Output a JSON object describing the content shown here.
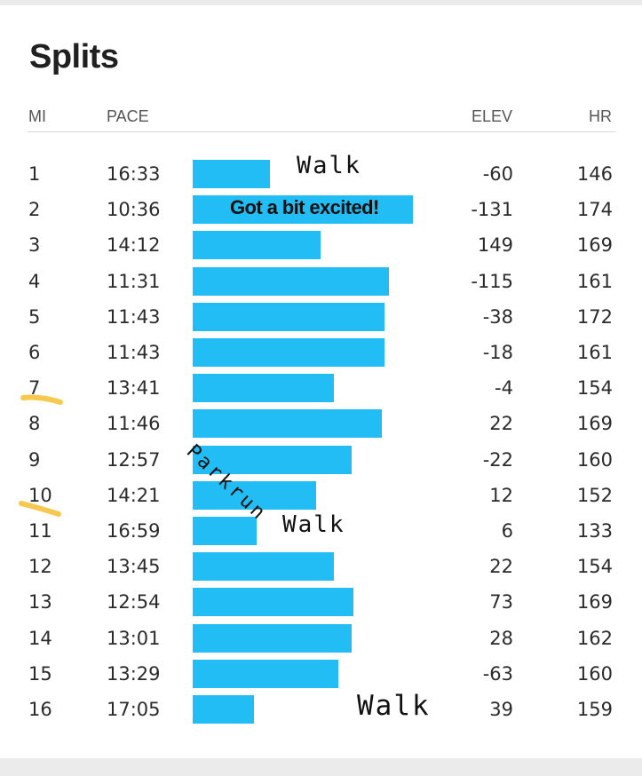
{
  "title": "Splits",
  "columns": {
    "mi": "MI",
    "pace": "PACE",
    "elev": "ELEV",
    "hr": "HR"
  },
  "colors": {
    "bar": "#21bdf4",
    "highlight": "#f5c33b"
  },
  "rows": [
    {
      "mi": "1",
      "pace": "16:33",
      "elev": "-60",
      "hr": "146",
      "bar_fraction": 0.35
    },
    {
      "mi": "2",
      "pace": "10:36",
      "elev": "-131",
      "hr": "174",
      "bar_fraction": 1.0
    },
    {
      "mi": "3",
      "pace": "14:12",
      "elev": "149",
      "hr": "169",
      "bar_fraction": 0.58
    },
    {
      "mi": "4",
      "pace": "11:31",
      "elev": "-115",
      "hr": "161",
      "bar_fraction": 0.89
    },
    {
      "mi": "5",
      "pace": "11:43",
      "elev": "-38",
      "hr": "172",
      "bar_fraction": 0.87
    },
    {
      "mi": "6",
      "pace": "11:43",
      "elev": "-18",
      "hr": "161",
      "bar_fraction": 0.87
    },
    {
      "mi": "7",
      "pace": "13:41",
      "elev": "-4",
      "hr": "154",
      "bar_fraction": 0.64
    },
    {
      "mi": "8",
      "pace": "11:46",
      "elev": "22",
      "hr": "169",
      "bar_fraction": 0.86
    },
    {
      "mi": "9",
      "pace": "12:57",
      "elev": "-22",
      "hr": "160",
      "bar_fraction": 0.72
    },
    {
      "mi": "10",
      "pace": "14:21",
      "elev": "12",
      "hr": "152",
      "bar_fraction": 0.56
    },
    {
      "mi": "11",
      "pace": "16:59",
      "elev": "6",
      "hr": "133",
      "bar_fraction": 0.29
    },
    {
      "mi": "12",
      "pace": "13:45",
      "elev": "22",
      "hr": "154",
      "bar_fraction": 0.64
    },
    {
      "mi": "13",
      "pace": "12:54",
      "elev": "73",
      "hr": "169",
      "bar_fraction": 0.73
    },
    {
      "mi": "14",
      "pace": "13:01",
      "elev": "28",
      "hr": "162",
      "bar_fraction": 0.72
    },
    {
      "mi": "15",
      "pace": "13:29",
      "elev": "-63",
      "hr": "160",
      "bar_fraction": 0.66
    },
    {
      "mi": "16",
      "pace": "17:05",
      "elev": "39",
      "hr": "159",
      "bar_fraction": 0.28
    }
  ],
  "annotations": {
    "walk_1": "Walk",
    "excited": "Got a bit excited!",
    "parkrun": "Parkrun",
    "walk_11": "Walk",
    "walk_16": "Walk"
  }
}
